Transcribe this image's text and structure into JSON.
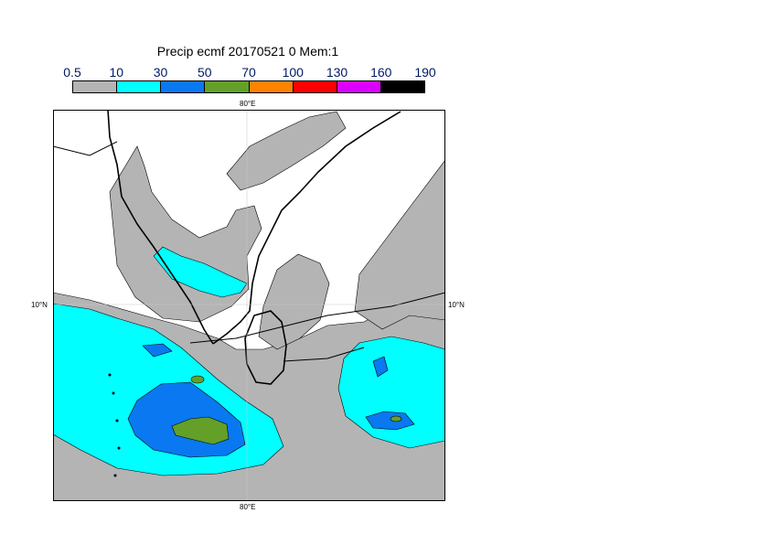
{
  "title": "Precip ecmf 20170521 0 Mem:1",
  "legend": {
    "ticks": [
      "0.5",
      "10",
      "30",
      "50",
      "70",
      "100",
      "130",
      "160",
      "190"
    ],
    "colors": [
      "#b4b4b4",
      "#00ffff",
      "#0a78f0",
      "#64a028",
      "#ff8200",
      "#ff0000",
      "#dc00ff",
      "#000000"
    ]
  },
  "axes": {
    "top_lon": "80°E",
    "bottom_lon": "80°E",
    "left_lat": "10°N",
    "right_lat": "10°N"
  }
}
